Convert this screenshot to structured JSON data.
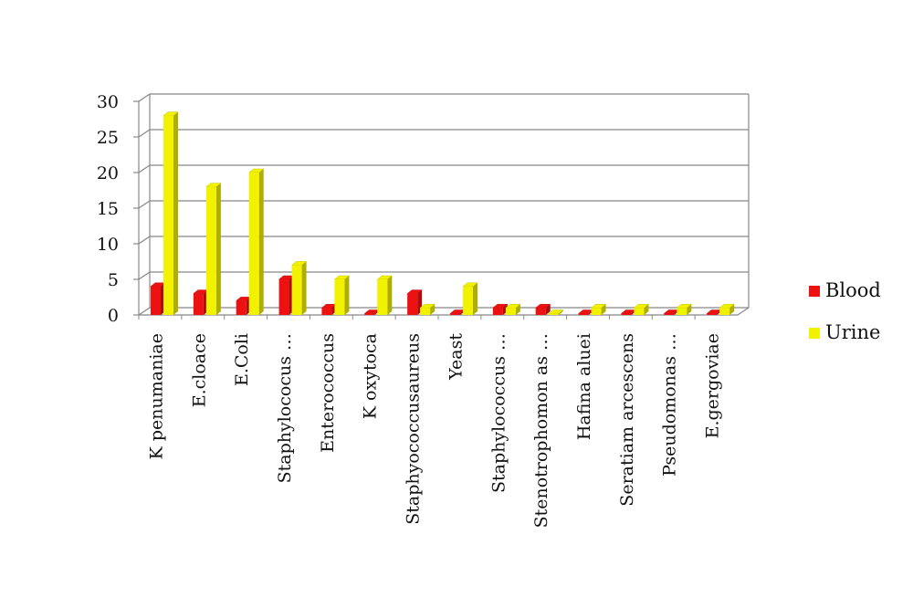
{
  "chart_data": {
    "type": "bar",
    "categories": [
      "K penumaniae",
      "E.cloace",
      "E.Coli",
      "Staphylococus …",
      "Enterococcus",
      "K oxytoca",
      "Staphyococcusaureus",
      "Yeast",
      "Staphylococcus …",
      "Stenotrophomon as …",
      "Hafina aluei",
      "Seratiam arcescens",
      "Pseudomonas …",
      "E.gergoviae"
    ],
    "series": [
      {
        "name": "Blood",
        "color": "#ee1111",
        "values": [
          4,
          3,
          2,
          5,
          1,
          0,
          3,
          0,
          1,
          1,
          0,
          0,
          0,
          0
        ]
      },
      {
        "name": "Urine",
        "color": "#f2f200",
        "values": [
          28,
          18,
          20,
          7,
          5,
          5,
          1,
          4,
          1,
          0,
          1,
          1,
          1,
          1
        ]
      }
    ],
    "ylim": [
      0,
      30
    ],
    "yticks": [
      "0",
      "5",
      "10",
      "15",
      "20",
      "25",
      "30"
    ],
    "grid": true,
    "legend": "right",
    "style": "3d-bar"
  }
}
